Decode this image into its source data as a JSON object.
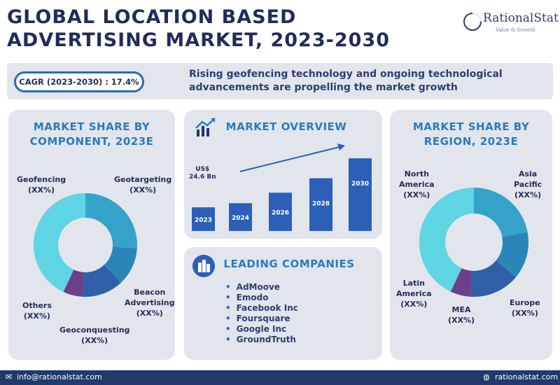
{
  "header": {
    "title_line1": "GLOBAL LOCATION BASED",
    "title_line2": "ADVERTISING MARKET, 2023-2030",
    "logo_name": "RationalStat",
    "logo_tagline": "Value & Growth"
  },
  "banner": {
    "cagr": "CAGR (2023-2030) : 17.4%",
    "text": "Rising geofencing technology and ongoing technological advancements are propelling the market growth"
  },
  "component_card": {
    "title_line1": "MARKET SHARE BY",
    "title_line2": "COMPONENT, 2023E"
  },
  "overview_card": {
    "title": "MARKET OVERVIEW",
    "value_label_line1": "US$",
    "value_label_line2": "24.6 Bn"
  },
  "region_card": {
    "title_line1": "MARKET SHARE BY",
    "title_line2": "REGION, 2023E"
  },
  "companies_card": {
    "title": "LEADING COMPANIES",
    "items": [
      "AdMoove",
      "Emodo",
      "Facebook Inc",
      "Foursquare",
      "Google Inc",
      "GroundTruth"
    ]
  },
  "footer": {
    "email": "info@rationalstat.com",
    "website": "rationalstat.com"
  },
  "colors": {
    "navy": "#1f2d5a",
    "accent": "#2b7bbd",
    "bar": "#2b5fb8",
    "footer": "#1f3a6b"
  },
  "chart_data": [
    {
      "type": "pie",
      "title": "MARKET SHARE BY COMPONENT, 2023E",
      "categories": [
        "Geotargeting",
        "Beacon Advertising",
        "Geoconquesting",
        "Others",
        "Geofencing"
      ],
      "values": [
        26,
        12,
        13,
        6,
        43
      ],
      "value_labels": [
        "(XX%)",
        "(XX%)",
        "(XX%)",
        "(XX%)",
        "(XX%)"
      ],
      "colors": [
        "#35a3c9",
        "#2b86b8",
        "#2e5fa7",
        "#6b3f8a",
        "#5fd4e3"
      ]
    },
    {
      "type": "bar",
      "title": "MARKET OVERVIEW",
      "categories": [
        "2023",
        "2024",
        "2026",
        "2028",
        "2030"
      ],
      "values": [
        24.6,
        28.9,
        39.8,
        54.8,
        75.5
      ],
      "annotation": "US$ 24.6 Bn",
      "ylim": [
        0,
        80
      ]
    },
    {
      "type": "pie",
      "title": "MARKET SHARE BY REGION, 2023E",
      "categories": [
        "Asia Pacific",
        "Europe",
        "MEA",
        "Latin America",
        "North America"
      ],
      "values": [
        22,
        14,
        15,
        6,
        43
      ],
      "value_labels": [
        "(XX%)",
        "(XX%)",
        "(XX%)",
        "(XX%)",
        "(XX%)"
      ],
      "colors": [
        "#35a3c9",
        "#2b86b8",
        "#2e5fa7",
        "#6b3f8a",
        "#5fd4e3"
      ]
    }
  ]
}
